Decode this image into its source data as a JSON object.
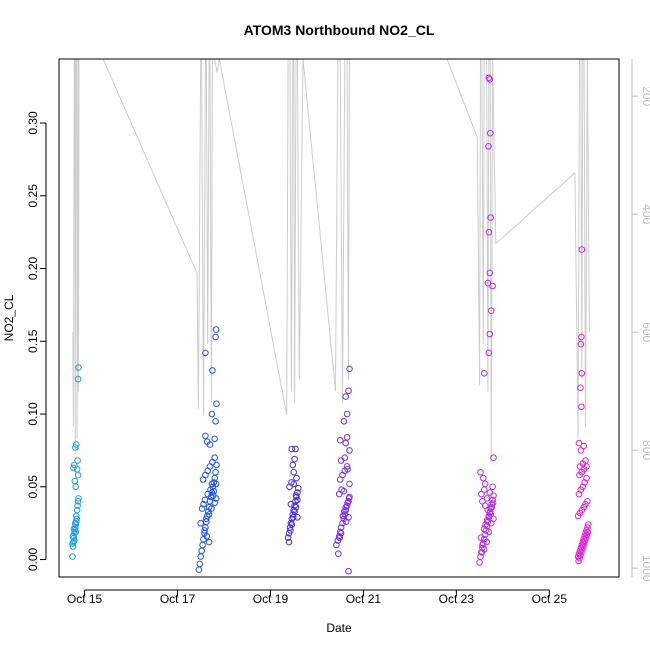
{
  "chart_data": {
    "type": "scatter",
    "title": "ATOM3 Northbound NO2_CL",
    "xlabel": "Date",
    "ylabel": "NO2_CL",
    "y2label": "",
    "xlim": [
      14.45,
      26.5
    ],
    "ylim": [
      -0.012,
      0.344
    ],
    "y2lim": [
      1015,
      137
    ],
    "x_ticks": [
      15,
      17,
      19,
      21,
      23,
      25
    ],
    "x_tick_labels": [
      "Oct 15",
      "Oct 17",
      "Oct 19",
      "Oct 21",
      "Oct 23",
      "Oct 25"
    ],
    "y_ticks": [
      0.0,
      0.05,
      0.1,
      0.15,
      0.2,
      0.25,
      0.3
    ],
    "y_tick_labels": [
      "0.00",
      "0.05",
      "0.10",
      "0.15",
      "0.20",
      "0.25",
      "0.30"
    ],
    "y2_ticks": [
      200,
      400,
      600,
      800,
      1000
    ],
    "y2_tick_labels": [
      "200",
      "400",
      "600",
      "800",
      "1000"
    ],
    "grid": false,
    "colors": {
      "altitude_line": "#cccccc",
      "axis": "#000000",
      "right_axis": "#bdbdbd"
    },
    "groups": [
      {
        "date": "Oct 14-15",
        "color": "#1e9bf0",
        "x": [
          14.74,
          14.75,
          14.76,
          14.77,
          14.78,
          14.79,
          14.8,
          14.81,
          14.82,
          14.83,
          14.74,
          14.75,
          14.77,
          14.78,
          14.8,
          14.81,
          14.82,
          14.84,
          14.85,
          14.86,
          14.76,
          14.78,
          14.79,
          14.81,
          14.84,
          14.86,
          14.8,
          14.82,
          14.85,
          14.87,
          14.86,
          14.87
        ],
        "y": [
          0.002,
          0.009,
          0.012,
          0.015,
          0.018,
          0.02,
          0.022,
          0.024,
          0.026,
          0.028,
          0.011,
          0.016,
          0.021,
          0.013,
          0.025,
          0.019,
          0.03,
          0.034,
          0.037,
          0.04,
          0.063,
          0.065,
          0.054,
          0.05,
          0.062,
          0.058,
          0.077,
          0.079,
          0.068,
          0.042,
          0.124,
          0.132
        ]
      },
      {
        "date": "Oct 17",
        "color": "#1f55e8",
        "x": [
          17.46,
          17.48,
          17.5,
          17.52,
          17.54,
          17.56,
          17.58,
          17.6,
          17.62,
          17.64,
          17.66,
          17.68,
          17.7,
          17.72,
          17.74,
          17.76,
          17.78,
          17.8,
          17.82,
          17.84,
          17.5,
          17.53,
          17.56,
          17.59,
          17.62,
          17.65,
          17.68,
          17.71,
          17.74,
          17.77,
          17.8,
          17.83,
          17.55,
          17.6,
          17.65,
          17.7,
          17.75,
          17.8,
          17.58,
          17.63,
          17.68,
          17.73,
          17.78,
          17.83,
          17.6,
          17.7,
          17.8,
          17.82,
          17.64,
          17.74,
          17.84,
          17.6,
          17.75,
          17.82,
          17.83
        ],
        "y": [
          -0.007,
          -0.003,
          0.002,
          0.006,
          0.01,
          0.014,
          0.018,
          0.022,
          0.026,
          0.03,
          0.033,
          0.036,
          0.04,
          0.043,
          0.046,
          0.05,
          0.053,
          0.056,
          0.06,
          0.065,
          0.025,
          0.035,
          0.038,
          0.041,
          0.028,
          0.045,
          0.031,
          0.048,
          0.052,
          0.044,
          0.039,
          0.042,
          0.055,
          0.058,
          0.061,
          0.064,
          0.067,
          0.07,
          0.02,
          0.016,
          0.012,
          0.035,
          0.047,
          0.052,
          0.085,
          0.079,
          0.083,
          0.095,
          0.081,
          0.1,
          0.107,
          0.142,
          0.13,
          0.153,
          0.158
        ]
      },
      {
        "date": "Oct 19",
        "color": "#4a2ee0",
        "x": [
          19.38,
          19.4,
          19.42,
          19.44,
          19.46,
          19.48,
          19.5,
          19.52,
          19.54,
          19.56,
          19.58,
          19.6,
          19.4,
          19.43,
          19.46,
          19.49,
          19.52,
          19.55,
          19.58,
          19.41,
          19.45,
          19.5,
          19.55,
          19.44,
          19.5,
          19.56,
          19.48,
          19.52,
          19.58,
          19.46,
          19.54
        ],
        "y": [
          0.015,
          0.018,
          0.022,
          0.025,
          0.028,
          0.031,
          0.034,
          0.037,
          0.04,
          0.043,
          0.046,
          0.049,
          0.012,
          0.02,
          0.024,
          0.029,
          0.033,
          0.036,
          0.041,
          0.05,
          0.053,
          0.052,
          0.044,
          0.038,
          0.06,
          0.056,
          0.065,
          0.069,
          0.029,
          0.076,
          0.076
        ]
      },
      {
        "date": "Oct 20-21",
        "color": "#7a2ee8",
        "x": [
          20.42,
          20.45,
          20.48,
          20.5,
          20.52,
          20.55,
          20.58,
          20.6,
          20.62,
          20.65,
          20.68,
          20.7,
          20.46,
          20.49,
          20.52,
          20.56,
          20.59,
          20.62,
          20.66,
          20.69,
          20.48,
          20.53,
          20.58,
          20.63,
          20.68,
          20.5,
          20.55,
          20.6,
          20.65,
          20.7,
          20.52,
          20.6,
          20.66,
          20.5,
          20.62,
          20.65,
          20.7,
          20.58,
          20.65,
          20.62,
          20.68,
          20.7,
          20.68
        ],
        "y": [
          0.01,
          0.013,
          0.016,
          0.019,
          0.022,
          0.025,
          0.028,
          0.031,
          0.034,
          0.037,
          0.04,
          0.043,
          0.004,
          0.015,
          0.018,
          0.03,
          0.033,
          0.036,
          0.039,
          0.042,
          0.045,
          0.048,
          0.047,
          0.026,
          0.029,
          0.055,
          0.058,
          0.061,
          0.064,
          0.052,
          0.068,
          0.07,
          0.062,
          0.082,
          0.08,
          0.084,
          0.075,
          0.095,
          0.1,
          0.112,
          0.116,
          0.131,
          -0.008
        ]
      },
      {
        "date": "Oct 23",
        "color": "#b52ee0",
        "x": [
          23.5,
          23.52,
          23.54,
          23.56,
          23.58,
          23.6,
          23.62,
          23.64,
          23.66,
          23.68,
          23.7,
          23.72,
          23.74,
          23.76,
          23.78,
          23.8,
          23.53,
          23.56,
          23.6,
          23.63,
          23.66,
          23.7,
          23.73,
          23.76,
          23.79,
          23.55,
          23.6,
          23.65,
          23.7,
          23.75,
          23.8,
          23.54,
          23.6,
          23.66,
          23.72,
          23.78,
          23.56,
          23.62,
          23.68,
          23.74,
          23.52,
          23.58,
          23.62,
          23.8,
          23.6,
          23.7,
          23.72,
          23.75,
          23.78,
          23.68,
          23.72,
          23.7,
          23.74,
          23.69,
          23.73,
          23.7,
          23.72
        ],
        "y": [
          -0.002,
          0.002,
          0.005,
          0.008,
          0.011,
          0.014,
          0.017,
          0.02,
          0.023,
          0.026,
          0.029,
          0.032,
          0.035,
          0.038,
          0.041,
          0.044,
          0.015,
          0.01,
          0.021,
          0.024,
          0.027,
          0.03,
          0.033,
          0.036,
          0.039,
          0.005,
          0.007,
          0.012,
          0.019,
          0.025,
          0.028,
          0.045,
          0.048,
          0.042,
          0.046,
          0.05,
          0.04,
          0.037,
          0.034,
          0.031,
          0.06,
          0.056,
          0.052,
          0.07,
          0.128,
          0.142,
          0.155,
          0.171,
          0.188,
          0.19,
          0.197,
          0.225,
          0.235,
          0.284,
          0.293,
          0.331,
          0.33
        ]
      },
      {
        "date": "Oct 25",
        "color": "#e022d6",
        "x": [
          25.62,
          25.64,
          25.66,
          25.68,
          25.7,
          25.72,
          25.74,
          25.76,
          25.78,
          25.8,
          25.82,
          25.84,
          25.63,
          25.65,
          25.67,
          25.69,
          25.71,
          25.73,
          25.75,
          25.77,
          25.79,
          25.81,
          25.83,
          25.62,
          25.66,
          25.7,
          25.74,
          25.78,
          25.82,
          25.64,
          25.68,
          25.72,
          25.76,
          25.8,
          25.65,
          25.7,
          25.75,
          25.8,
          25.66,
          25.72,
          25.78,
          25.68,
          25.74,
          25.64,
          25.69,
          25.67,
          25.7,
          25.68,
          25.69,
          25.7
        ],
        "y": [
          0.002,
          0.004,
          0.006,
          0.008,
          0.01,
          0.012,
          0.014,
          0.016,
          0.018,
          0.02,
          0.022,
          0.024,
          -0.001,
          0.001,
          0.003,
          0.005,
          0.007,
          0.009,
          0.011,
          0.013,
          0.015,
          0.017,
          0.019,
          0.03,
          0.032,
          0.034,
          0.036,
          0.038,
          0.04,
          0.045,
          0.048,
          0.05,
          0.053,
          0.056,
          0.058,
          0.06,
          0.062,
          0.064,
          0.064,
          0.066,
          0.068,
          0.075,
          0.078,
          0.08,
          0.105,
          0.118,
          0.128,
          0.148,
          0.153,
          0.213
        ]
      }
    ],
    "altitude_line": {
      "x": [
        14.75,
        14.76,
        14.78,
        14.79,
        14.8,
        14.81,
        14.83,
        14.84,
        14.86,
        14.87,
        14.88,
        15.4,
        17.42,
        17.45,
        17.5,
        17.52,
        17.54,
        17.56,
        17.6,
        17.62,
        17.65,
        17.68,
        17.7,
        17.73,
        17.75,
        17.8,
        17.85,
        17.9,
        19.35,
        19.38,
        19.42,
        19.45,
        19.48,
        19.5,
        19.52,
        19.55,
        19.58,
        19.62,
        19.7,
        20.4,
        20.45,
        20.5,
        20.55,
        20.6,
        20.65,
        20.68,
        20.7,
        20.75,
        22.8,
        23.45,
        23.5,
        23.52,
        23.55,
        23.58,
        23.6,
        23.65,
        23.68,
        23.7,
        23.73,
        23.75,
        23.78,
        23.85,
        25.55,
        25.62,
        25.65,
        25.68,
        25.7,
        25.72,
        25.75,
        25.78,
        25.82,
        25.86
      ],
      "y": [
        600,
        760,
        137,
        137,
        800,
        137,
        137,
        780,
        137,
        700,
        137,
        137,
        500,
        730,
        137,
        137,
        480,
        740,
        137,
        137,
        620,
        137,
        137,
        720,
        137,
        137,
        160,
        137,
        740,
        137,
        137,
        700,
        137,
        137,
        720,
        137,
        137,
        680,
        137,
        700,
        137,
        137,
        720,
        137,
        137,
        680,
        137,
        137,
        137,
        270,
        690,
        137,
        137,
        620,
        137,
        137,
        700,
        137,
        137,
        820,
        137,
        450,
        330,
        780,
        137,
        137,
        680,
        137,
        137,
        760,
        137,
        600
      ]
    }
  }
}
